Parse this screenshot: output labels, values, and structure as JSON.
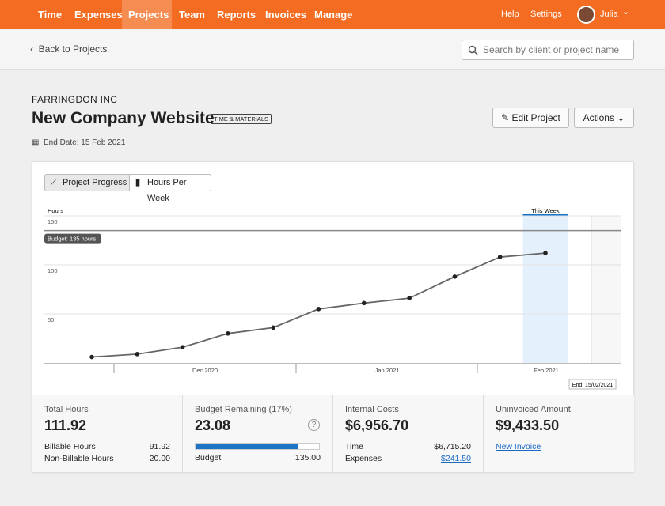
{
  "nav": {
    "items": [
      "Time",
      "Expenses",
      "Projects",
      "Team",
      "Reports",
      "Invoices",
      "Manage"
    ],
    "active": 2,
    "right": [
      "Help",
      "Settings"
    ],
    "user": "Julia"
  },
  "subheader": {
    "back": "Back to Projects",
    "search_placeholder": "Search by client or project name"
  },
  "project": {
    "client": "FARRINGDON INC",
    "name": "New Company Website",
    "badge": "TIME & MATERIALS",
    "end_date": "End Date: 15 Feb 2021",
    "edit": "Edit Project",
    "actions": "Actions"
  },
  "tabs": [
    "Project Progress",
    "Hours Per Week"
  ],
  "chart": {
    "type": "line",
    "y_label": "Hours",
    "values": [
      6,
      9,
      16,
      30,
      36,
      55,
      61,
      66,
      88,
      108,
      112
    ],
    "color": "#666666",
    "ylim": [
      0,
      150
    ],
    "yticks": [
      50,
      100,
      150
    ],
    "grid": true,
    "months": [
      "Dec 2020",
      "Jan 2021",
      "Feb 2021"
    ],
    "budget": {
      "value": 135,
      "label": "Budget: 135 hours"
    },
    "this_week": "This Week",
    "end_label": "End: 15/02/2021"
  },
  "stats": {
    "total": {
      "label": "Total Hours",
      "value": 111.92,
      "rows": [
        [
          "Billable Hours",
          "91.92"
        ],
        [
          "Non-Billable Hours",
          "20.00"
        ]
      ]
    },
    "budget": {
      "label": "Budget Remaining (17%)",
      "value": "23.08",
      "help": "?",
      "row": [
        "Budget",
        {
          "value": 135,
          "label": "135.00"
        }
      ]
    },
    "costs": {
      "label": "Internal Costs",
      "value": "$6,956.70",
      "rows": [
        [
          "Time",
          "$6,715.20"
        ],
        [
          "Expenses",
          "$241.50"
        ]
      ]
    },
    "uninvoiced": {
      "label": "Uninvoiced Amount",
      "value": "$9,433.50",
      "link": "New Invoice"
    }
  }
}
